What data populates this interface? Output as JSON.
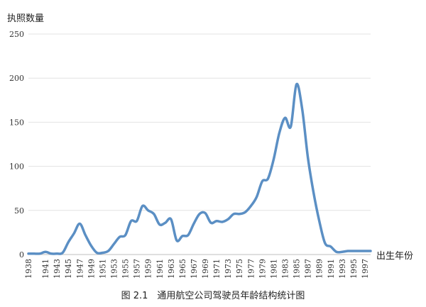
{
  "caption": "图 2.1　通用航空公司驾驶员年龄结构统计图",
  "chart_data": {
    "type": "line",
    "title": "",
    "ylabel": "执照数量",
    "xlabel": "出生年份",
    "ylim": [
      0,
      250
    ],
    "xlim": [
      1938,
      1998
    ],
    "yticks": [
      0,
      50,
      100,
      150,
      200,
      250
    ],
    "xticks": [
      1938,
      1941,
      1943,
      1945,
      1947,
      1949,
      1951,
      1953,
      1955,
      1957,
      1959,
      1961,
      1963,
      1965,
      1967,
      1969,
      1971,
      1973,
      1975,
      1977,
      1979,
      1981,
      1983,
      1985,
      1987,
      1989,
      1991,
      1993,
      1995,
      1997
    ],
    "grid": true,
    "line_color": "#5b8fc4",
    "series": [
      {
        "x": [
          1938,
          1939,
          1940,
          1941,
          1942,
          1943,
          1944,
          1945,
          1946,
          1947,
          1948,
          1949,
          1950,
          1951,
          1952,
          1953,
          1954,
          1955,
          1956,
          1957,
          1958,
          1959,
          1960,
          1961,
          1962,
          1963,
          1964,
          1965,
          1966,
          1967,
          1968,
          1969,
          1970,
          1971,
          1972,
          1973,
          1974,
          1975,
          1976,
          1977,
          1978,
          1979,
          1980,
          1981,
          1982,
          1983,
          1984,
          1985,
          1986,
          1987,
          1988,
          1989,
          1990,
          1991,
          1992,
          1993,
          1994,
          1995,
          1996,
          1997,
          1998
        ],
        "y": [
          1,
          1,
          1,
          3,
          1,
          1,
          2,
          14,
          24,
          35,
          22,
          10,
          2,
          2,
          4,
          12,
          20,
          22,
          38,
          38,
          55,
          50,
          46,
          34,
          36,
          40,
          16,
          21,
          22,
          35,
          46,
          47,
          36,
          38,
          37,
          40,
          46,
          46,
          48,
          55,
          65,
          83,
          86,
          108,
          138,
          155,
          145,
          193,
          165,
          110,
          70,
          38,
          13,
          9,
          3,
          3,
          4,
          4,
          4,
          4,
          4
        ]
      }
    ]
  }
}
